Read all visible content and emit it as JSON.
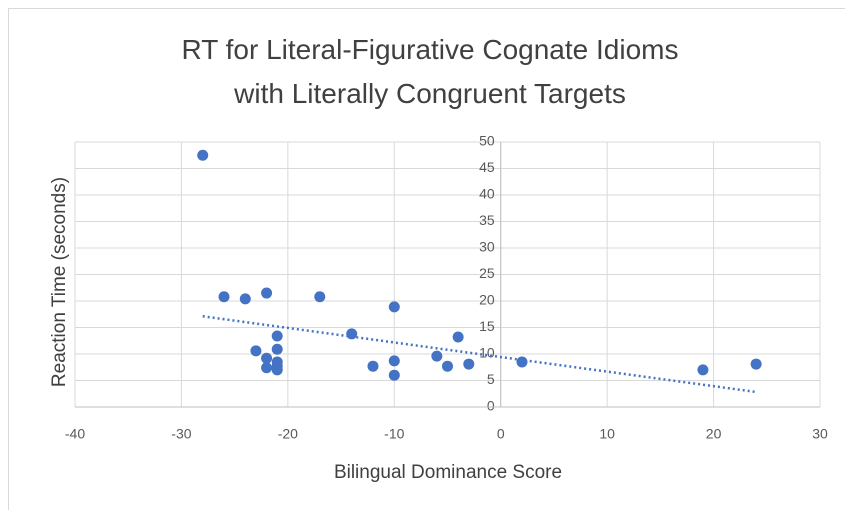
{
  "chart_data": {
    "type": "scatter",
    "title": "RT for Literal-Figurative Cognate Idioms with Literally Congruent Targets",
    "x_label": "Bilingual Dominance Score",
    "y_label": "Reaction Time (seconds)",
    "color": "#4472c4",
    "x": [
      -28,
      -26,
      -24,
      -22,
      -23,
      -22,
      -22,
      -21,
      -21,
      -21,
      -21,
      -21,
      -17,
      -14,
      -12,
      -10,
      -10,
      -10,
      -6,
      -5,
      -4,
      -3,
      2,
      19,
      24
    ],
    "values": [
      47.5,
      20.8,
      20.4,
      21.5,
      10.6,
      9.2,
      7.4,
      13.4,
      10.9,
      8.5,
      7.0,
      7.7,
      20.8,
      13.8,
      7.7,
      18.9,
      8.7,
      6.0,
      9.6,
      7.7,
      13.2,
      8.1,
      8.5,
      7.0,
      8.1
    ],
    "xlim": [
      -40,
      30
    ],
    "xticks": [
      -40,
      -30,
      -20,
      -10,
      0,
      10,
      20,
      30
    ],
    "ylim": [
      0,
      50
    ],
    "yticks": [
      0,
      5,
      10,
      15,
      20,
      25,
      30,
      35,
      40,
      45,
      50
    ],
    "grid": true,
    "trendline": "linear"
  }
}
